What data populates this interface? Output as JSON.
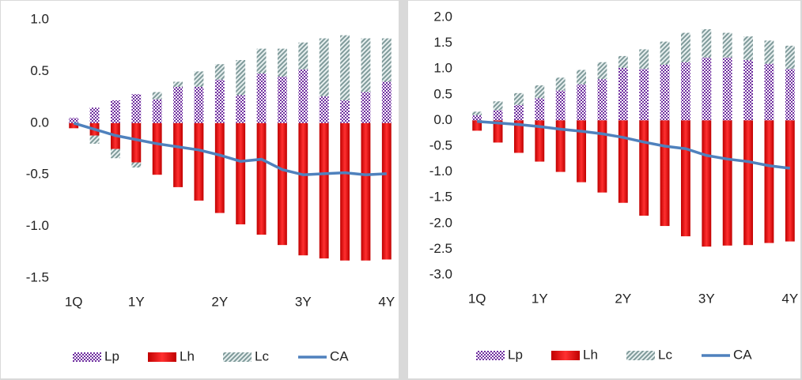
{
  "chart_data": [
    {
      "type": "bar",
      "categories": [
        "1Q",
        null,
        null,
        "1Y",
        null,
        null,
        null,
        "2Y",
        null,
        null,
        null,
        "3Y",
        null,
        null,
        null,
        "4Y"
      ],
      "ylim": [
        -1.5,
        1.0
      ],
      "yticks": [
        {
          "value": 1.0,
          "label": "1.0"
        },
        0.5,
        {
          "value": 0.0,
          "label": "0.0"
        },
        -0.5,
        {
          "value": -1.0,
          "label": "-1.0"
        },
        -1.5
      ],
      "legend": "bottom",
      "series": [
        {
          "name": "Lp",
          "type": "bar",
          "fill_style": "checker",
          "color": "#7030a0",
          "values": [
            0.05,
            0.15,
            0.22,
            0.28,
            0.23,
            0.35,
            0.35,
            0.42,
            0.27,
            0.48,
            0.45,
            0.52,
            0.26,
            0.22,
            0.3,
            0.4
          ]
        },
        {
          "name": "Lh",
          "type": "bar",
          "fill_style": "solid",
          "color": "#c00000",
          "values": [
            -0.05,
            -0.12,
            -0.25,
            -0.38,
            -0.5,
            -0.62,
            -0.75,
            -0.87,
            -0.98,
            -1.08,
            -1.18,
            -1.28,
            -1.31,
            -1.33,
            -1.33,
            -1.32
          ]
        },
        {
          "name": "Lc",
          "type": "bar",
          "fill_style": "hatch",
          "color": "#7f9a9a",
          "values": [
            0,
            -0.08,
            -0.09,
            -0.05,
            0.07,
            0.05,
            0.15,
            0.15,
            0.34,
            0.24,
            0.27,
            0.26,
            0.56,
            0.63,
            0.52,
            0.42
          ]
        },
        {
          "name": "CA",
          "type": "line",
          "color": "#4f81bd",
          "values": [
            0.0,
            -0.06,
            -0.12,
            -0.16,
            -0.2,
            -0.23,
            -0.26,
            -0.31,
            -0.37,
            -0.35,
            -0.45,
            -0.5,
            -0.49,
            -0.48,
            -0.5,
            -0.49
          ]
        }
      ]
    },
    {
      "type": "bar",
      "categories": [
        "1Q",
        null,
        null,
        "1Y",
        null,
        null,
        null,
        "2Y",
        null,
        null,
        null,
        "3Y",
        null,
        null,
        null,
        "4Y"
      ],
      "ylim": [
        -3.0,
        2.0
      ],
      "yticks": [
        {
          "value": 2.0,
          "label": "2.0"
        },
        1.5,
        {
          "value": 1.0,
          "label": "1.0"
        },
        0.5,
        {
          "value": 0.0,
          "label": "0.0"
        },
        -0.5,
        {
          "value": -1.0,
          "label": "-1.0"
        },
        -1.5,
        {
          "value": -2.0,
          "label": "-2.0"
        },
        -2.5,
        {
          "value": -3.0,
          "label": "-3.0"
        }
      ],
      "legend": "bottom",
      "series": [
        {
          "name": "Lp",
          "type": "bar",
          "fill_style": "checker",
          "color": "#7030a0",
          "values": [
            0.1,
            0.2,
            0.3,
            0.43,
            0.58,
            0.7,
            0.8,
            1.02,
            1.0,
            1.08,
            1.13,
            1.22,
            1.22,
            1.17,
            1.1,
            1.0
          ]
        },
        {
          "name": "Lh",
          "type": "bar",
          "fill_style": "solid",
          "color": "#c00000",
          "values": [
            -0.2,
            -0.43,
            -0.63,
            -0.8,
            -1.0,
            -1.2,
            -1.4,
            -1.6,
            -1.85,
            -2.05,
            -2.25,
            -2.45,
            -2.43,
            -2.42,
            -2.38,
            -2.35
          ]
        },
        {
          "name": "Lc",
          "type": "bar",
          "fill_style": "hatch",
          "color": "#7f9a9a",
          "values": [
            0.07,
            0.17,
            0.23,
            0.25,
            0.25,
            0.28,
            0.33,
            0.23,
            0.38,
            0.45,
            0.57,
            0.55,
            0.48,
            0.46,
            0.45,
            0.45
          ]
        },
        {
          "name": "CA",
          "type": "line",
          "color": "#4f81bd",
          "values": [
            -0.02,
            -0.05,
            -0.08,
            -0.12,
            -0.17,
            -0.21,
            -0.26,
            -0.33,
            -0.42,
            -0.5,
            -0.55,
            -0.68,
            -0.75,
            -0.8,
            -0.88,
            -0.93
          ]
        }
      ]
    }
  ]
}
